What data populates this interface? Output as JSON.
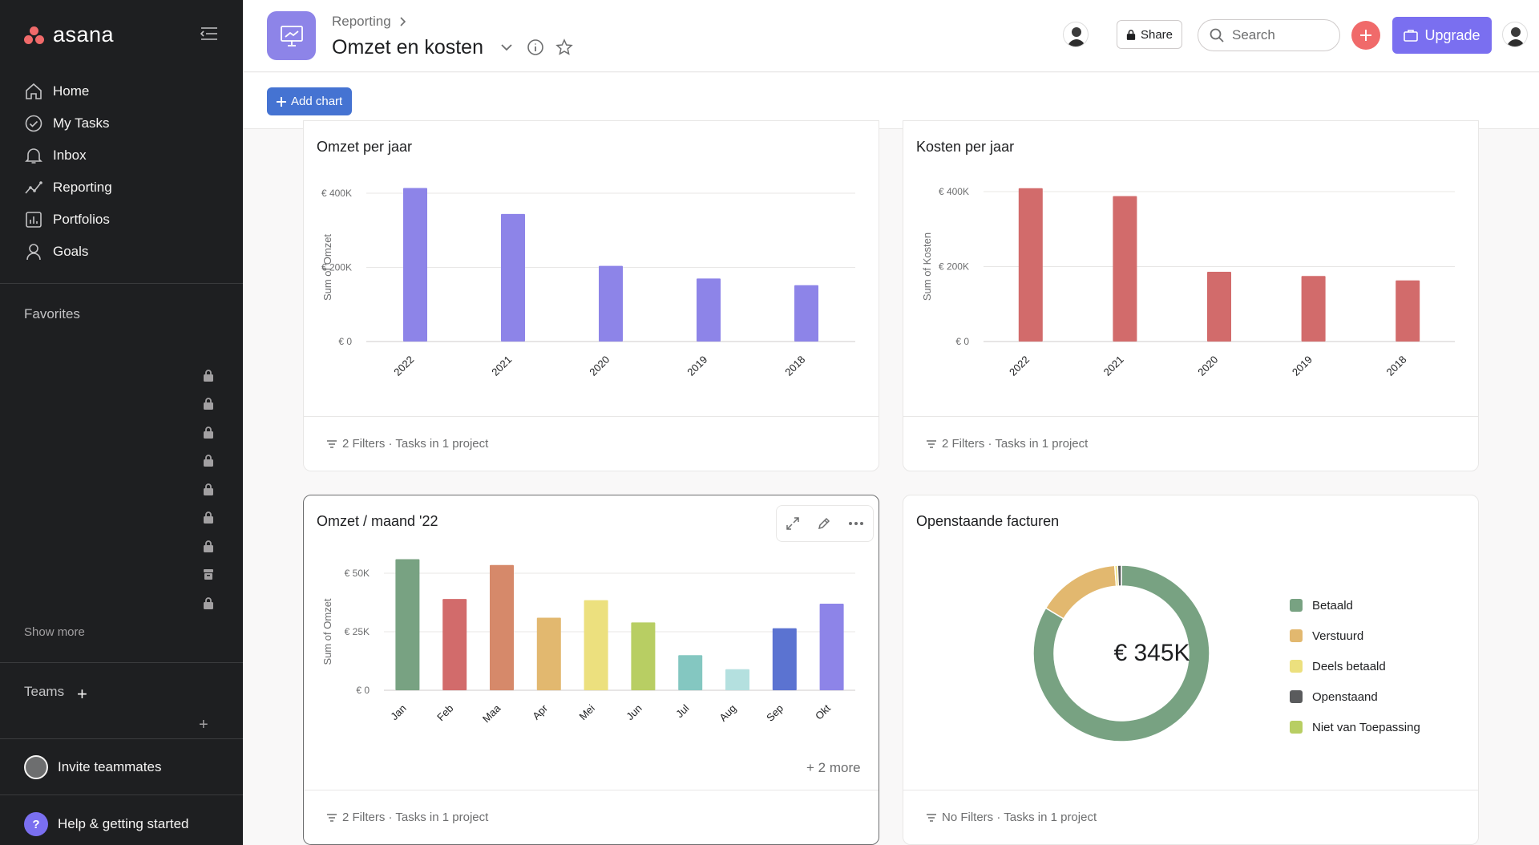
{
  "sidebar": {
    "logo": "asana",
    "nav": [
      {
        "label": "Home",
        "icon": "home-icon"
      },
      {
        "label": "My Tasks",
        "icon": "check-circle-icon"
      },
      {
        "label": "Inbox",
        "icon": "bell-icon"
      },
      {
        "label": "Reporting",
        "icon": "reporting-icon"
      },
      {
        "label": "Portfolios",
        "icon": "portfolio-icon"
      },
      {
        "label": "Goals",
        "icon": "goals-icon"
      }
    ],
    "favorites_title": "Favorites",
    "show_more": "Show more",
    "teams_title": "Teams",
    "invite": "Invite teammates",
    "help": "Help & getting started"
  },
  "header": {
    "breadcrumb": "Reporting",
    "title": "Omzet en kosten",
    "share": "Share",
    "search_placeholder": "Search",
    "upgrade": "Upgrade"
  },
  "toolbar": {
    "add_chart": "Add chart"
  },
  "charts": [
    {
      "title": "Omzet per jaar",
      "footer": "2 Filters · Tasks in 1 project",
      "chart_data": {
        "type": "bar",
        "categories": [
          "2022",
          "2021",
          "2020",
          "2019",
          "2018"
        ],
        "values": [
          414000,
          344000,
          204000,
          170000,
          152000
        ],
        "ylabel": "Sum of Omzet",
        "yticks": [
          "€ 0",
          "€ 200K",
          "€ 400K"
        ],
        "ylim": [
          0,
          400000
        ],
        "color": "#8d84e8"
      }
    },
    {
      "title": "Kosten per jaar",
      "footer": "2 Filters · Tasks in 1 project",
      "chart_data": {
        "type": "bar",
        "categories": [
          "2022",
          "2021",
          "2020",
          "2019",
          "2018"
        ],
        "values": [
          409000,
          388000,
          186000,
          175000,
          163000
        ],
        "ylabel": "Sum of Kosten",
        "yticks": [
          "€ 0",
          "€ 200K",
          "€ 400K"
        ],
        "ylim": [
          0,
          400000
        ],
        "color": "#d26b6b"
      }
    },
    {
      "title": "Omzet / maand '22",
      "footer": "2 Filters · Tasks in 1 project",
      "more": "+ 2 more",
      "chart_data": {
        "type": "bar",
        "categories": [
          "Jan",
          "Feb",
          "Maa",
          "Apr",
          "Mei",
          "Jun",
          "Jul",
          "Aug",
          "Sep",
          "Okt"
        ],
        "values": [
          56000,
          39000,
          53500,
          31000,
          38500,
          29000,
          15000,
          9000,
          26500,
          37000
        ],
        "colors": [
          "#78a282",
          "#d26b6b",
          "#d6896a",
          "#e2b86f",
          "#ece07e",
          "#b8ce63",
          "#84c7c1",
          "#b4e0df",
          "#5b73d1",
          "#8d84e8"
        ],
        "ylabel": "Sum of Omzet",
        "yticks": [
          "€ 0",
          "€ 25K",
          "€ 50K"
        ],
        "ylim": [
          0,
          50000
        ]
      }
    },
    {
      "title": "Openstaande facturen",
      "footer": "No Filters · Tasks in 1 project",
      "total": "€ 345K",
      "chart_data": {
        "type": "pie",
        "slices": [
          {
            "name": "Betaald",
            "value": 83.6,
            "color": "#78a282"
          },
          {
            "name": "Verstuurd",
            "value": 15.2,
            "color": "#e2b86f"
          },
          {
            "name": "Deels betaald",
            "value": 0.5,
            "color": "#ece07e"
          },
          {
            "name": "Openstaand",
            "value": 0.7,
            "color": "#5a5b5d"
          },
          {
            "name": "Niet van Toepassing",
            "value": 0.0,
            "color": "#b8ce63"
          }
        ]
      }
    }
  ]
}
